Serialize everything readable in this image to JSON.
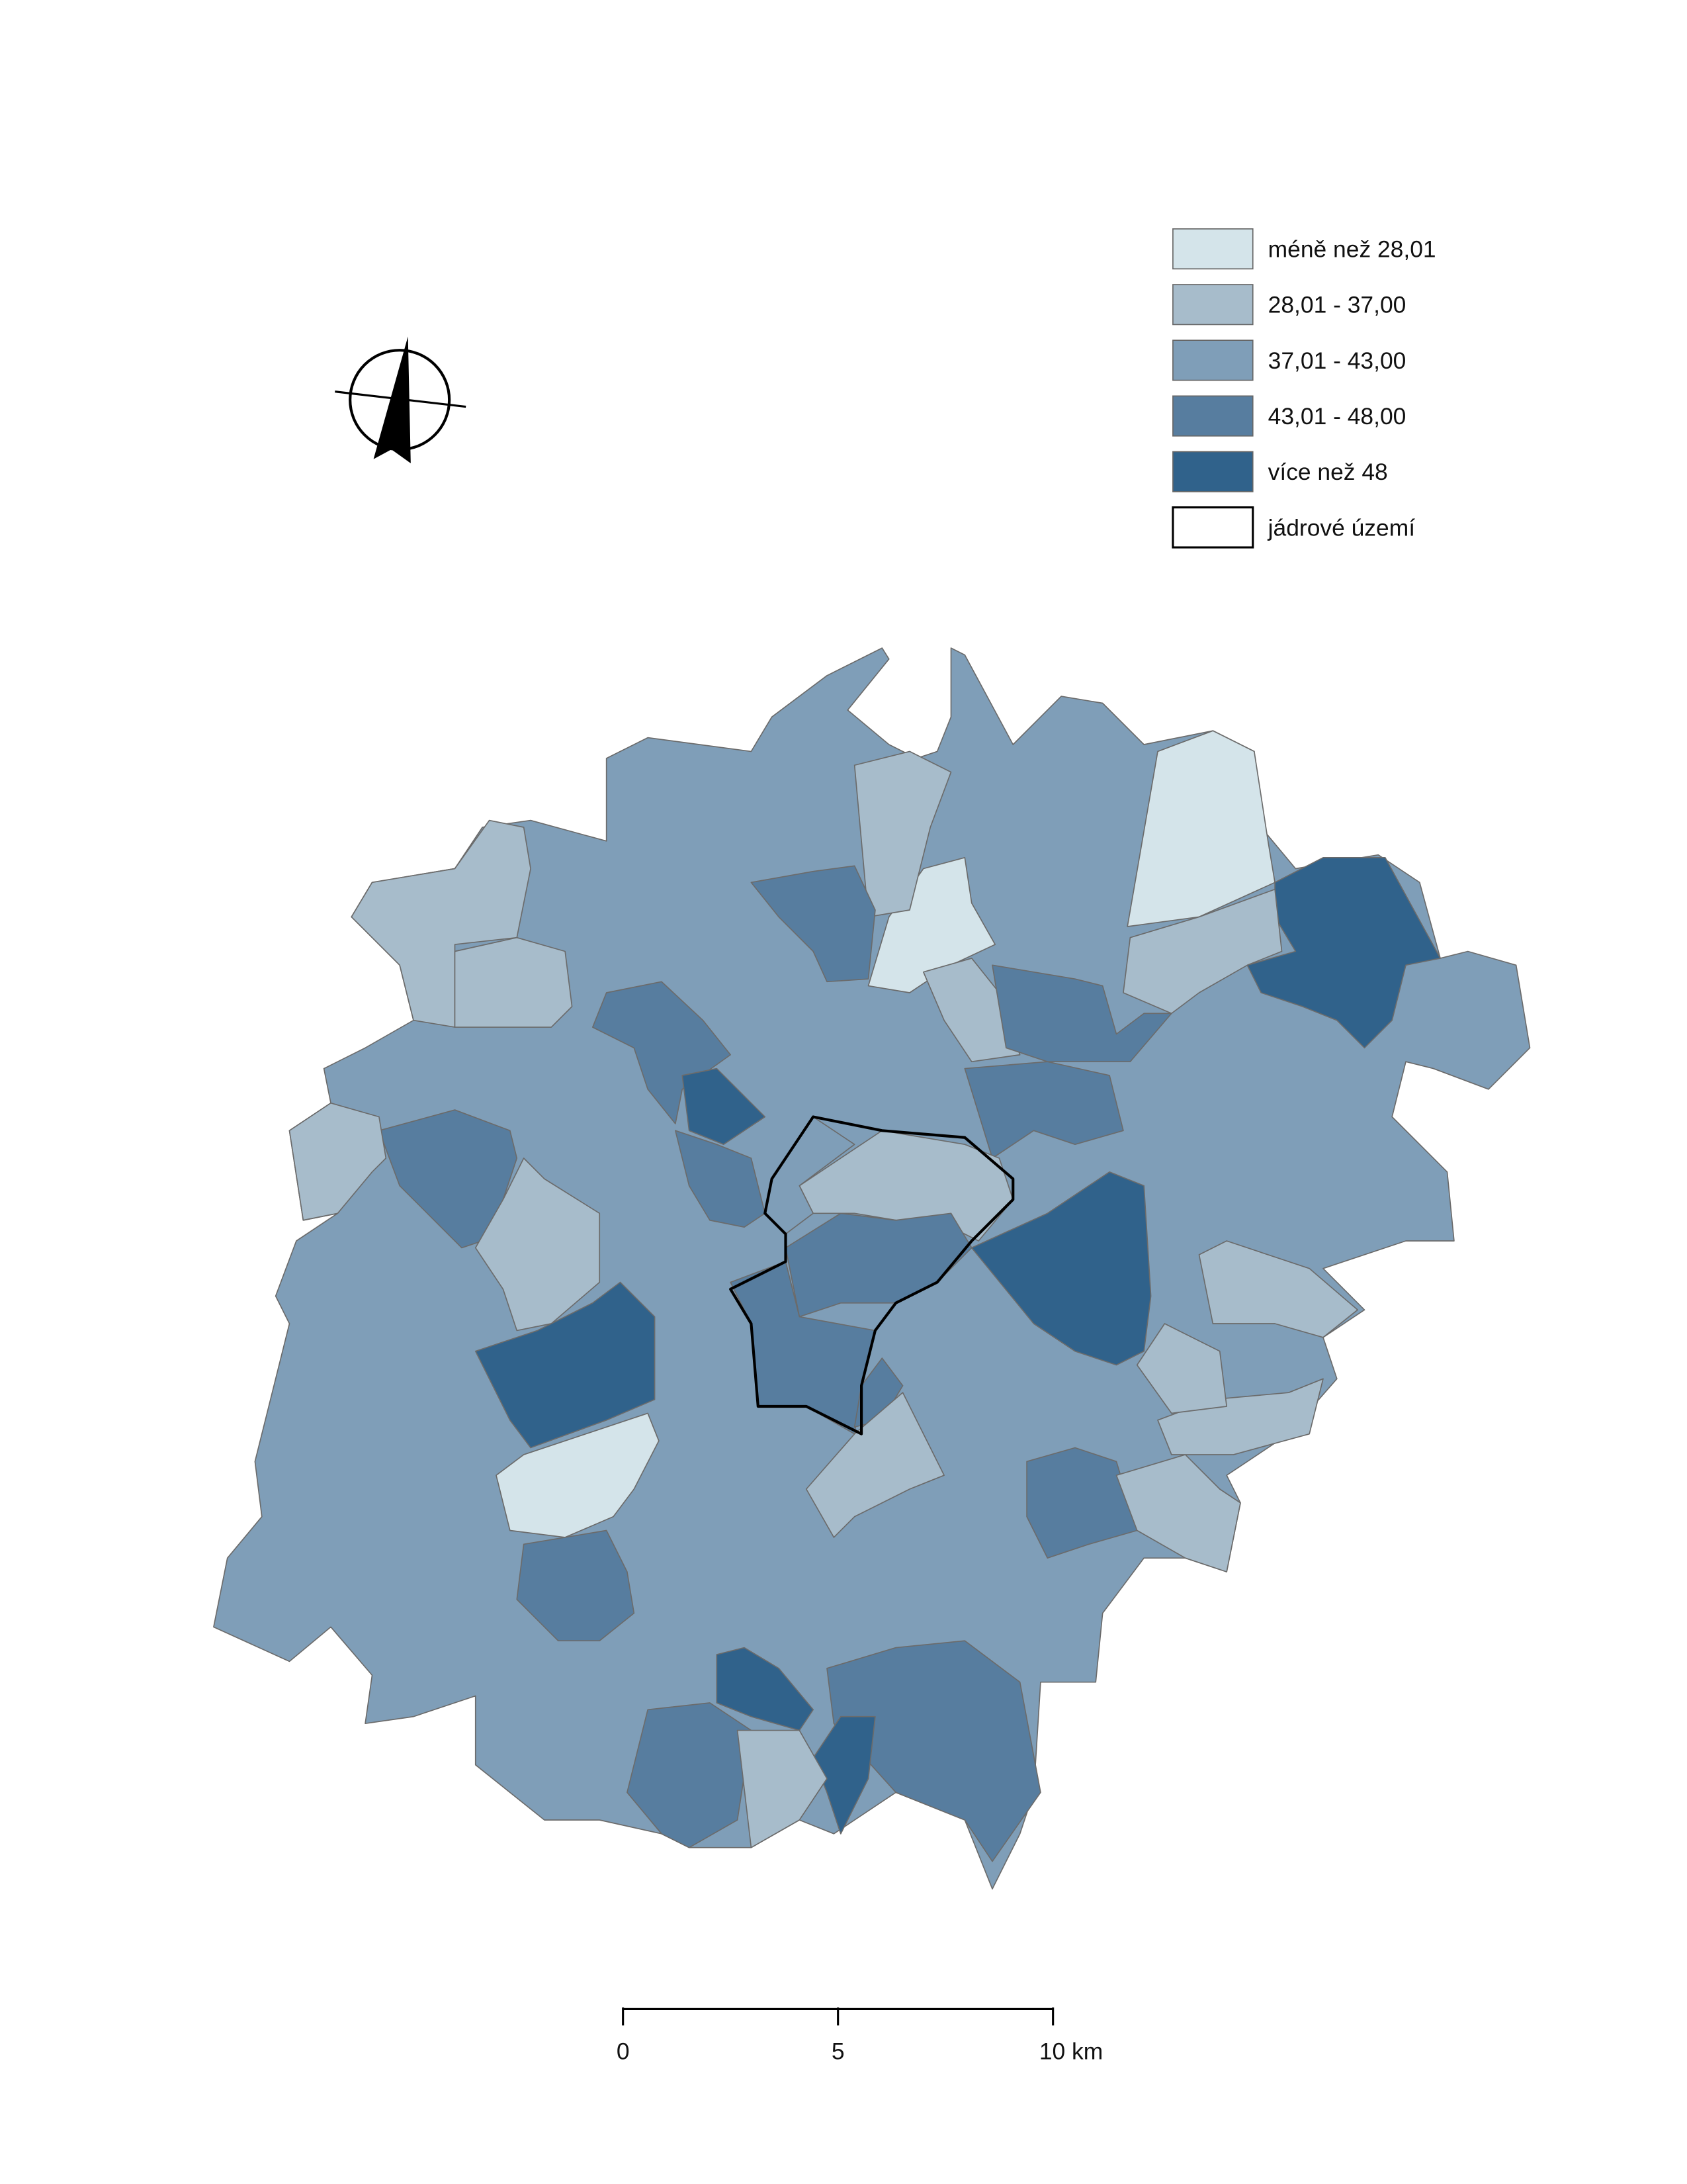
{
  "legend": {
    "items": [
      {
        "label": "méně než 28,01",
        "color": "#d4e4ea"
      },
      {
        "label": "28,01 - 37,00",
        "color": "#a7bccb"
      },
      {
        "label": "37,01 - 43,00",
        "color": "#7f9eb8"
      },
      {
        "label": "43,01 - 48,00",
        "color": "#577d9f"
      },
      {
        "label": "více než 48",
        "color": "#30628b"
      },
      {
        "label": "jádrové území",
        "color": "#ffffff"
      }
    ]
  },
  "scale_bar": {
    "ticks": [
      0,
      5,
      {
        "value": 10,
        "label": "10 km"
      }
    ]
  }
}
